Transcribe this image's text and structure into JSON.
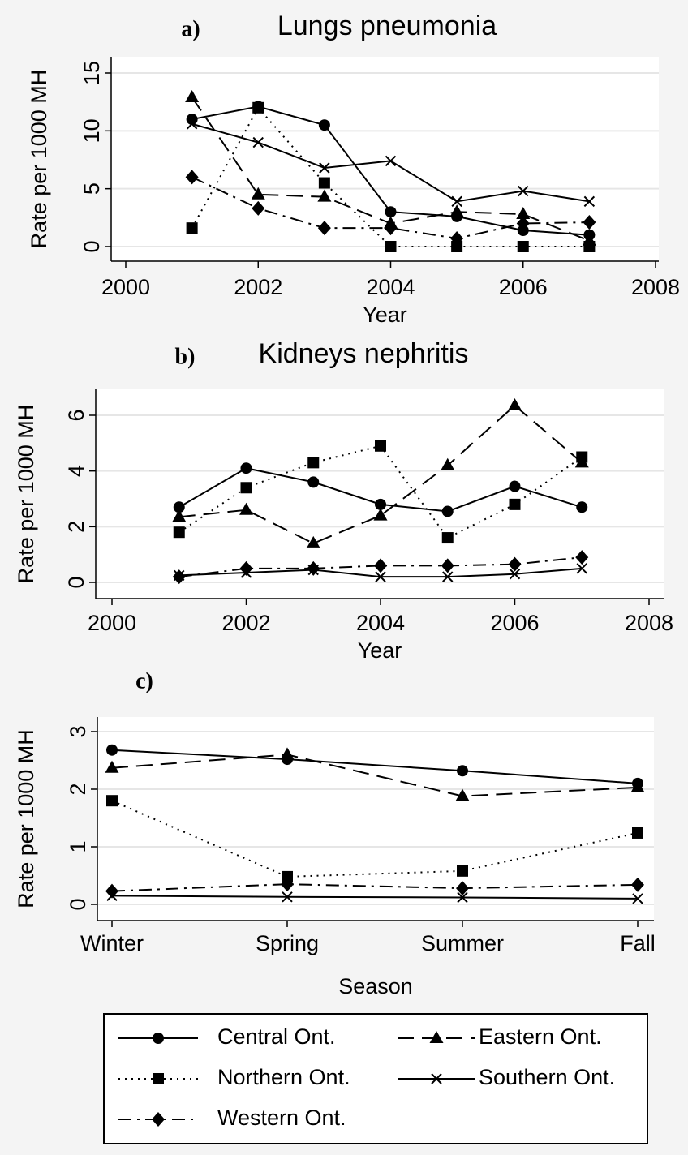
{
  "chart_data": [
    {
      "type": "line",
      "panel_label": "a)",
      "title": "Lungs pneumonia",
      "x_label": "Year",
      "y_label": "Rate per 1000 MH",
      "x": [
        2001,
        2002,
        2003,
        2004,
        2005,
        2006,
        2007
      ],
      "xlim": [
        2000,
        2008
      ],
      "xticks": [
        2000,
        2002,
        2004,
        2006,
        2008
      ],
      "ylim": [
        0,
        15
      ],
      "yticks": [
        0,
        5,
        10,
        15
      ],
      "grid": true,
      "series": [
        {
          "name": "Central Ont.",
          "color": "#000000",
          "marker": "circle",
          "dash": "solid",
          "values": [
            11,
            12.1,
            10.5,
            3.0,
            2.6,
            1.4,
            1.0
          ]
        },
        {
          "name": "Eastern Ont.",
          "color": "#000000",
          "marker": "triangle",
          "dash": "dash",
          "values": [
            12.9,
            4.5,
            4.3,
            2.0,
            3.0,
            2.8,
            0.5
          ]
        },
        {
          "name": "Northern Ont.",
          "color": "#000000",
          "marker": "square",
          "dash": "dot",
          "values": [
            1.6,
            12.0,
            5.5,
            0,
            0,
            0,
            0
          ]
        },
        {
          "name": "Southern Ont.",
          "color": "#000000",
          "marker": "x",
          "dash": "solid",
          "values": [
            10.6,
            9.0,
            6.8,
            7.4,
            3.9,
            4.8,
            3.9
          ]
        },
        {
          "name": "Western Ont.",
          "color": "#000000",
          "marker": "diamond",
          "dash": "dashdot",
          "values": [
            6.0,
            3.3,
            1.6,
            1.6,
            0.7,
            2.0,
            2.1
          ]
        }
      ]
    },
    {
      "type": "line",
      "panel_label": "b)",
      "title": "Kidneys nephritis",
      "x_label": "Year",
      "y_label": "Rate per 1000 MH",
      "x": [
        2001,
        2002,
        2003,
        2004,
        2005,
        2006,
        2007
      ],
      "xlim": [
        2000,
        2008
      ],
      "xticks": [
        2000,
        2002,
        2004,
        2006,
        2008
      ],
      "ylim": [
        0,
        6
      ],
      "yticks": [
        0,
        2,
        4,
        6
      ],
      "grid": true,
      "series": [
        {
          "color": "#000000",
          "marker": "circle",
          "dash": "solid",
          "values": [
            2.7,
            4.1,
            3.6,
            2.8,
            2.55,
            3.45,
            2.7
          ]
        },
        {
          "color": "#000000",
          "marker": "triangle",
          "dash": "dash",
          "values": [
            2.35,
            2.6,
            1.4,
            2.4,
            4.2,
            6.35,
            4.3
          ]
        },
        {
          "color": "#000000",
          "marker": "square",
          "dash": "dot",
          "values": [
            1.8,
            3.4,
            4.3,
            4.9,
            1.6,
            2.8,
            4.5
          ]
        },
        {
          "color": "#000000",
          "marker": "x",
          "dash": "solid",
          "values": [
            0.25,
            0.35,
            0.45,
            0.2,
            0.2,
            0.3,
            0.5
          ]
        },
        {
          "color": "#000000",
          "marker": "diamond",
          "dash": "dashdot",
          "values": [
            0.2,
            0.5,
            0.5,
            0.6,
            0.6,
            0.65,
            0.9
          ]
        }
      ]
    },
    {
      "type": "line",
      "panel_label": "c)",
      "x_label": "Season",
      "y_label": "Rate per 1000 MH",
      "categories": [
        "Winter",
        "Spring",
        "Summer",
        "Fall"
      ],
      "ylim": [
        0,
        3
      ],
      "yticks": [
        0,
        1,
        2,
        3
      ],
      "grid": true,
      "series": [
        {
          "color": "#000000",
          "marker": "circle",
          "dash": "solid",
          "values": [
            2.68,
            2.52,
            2.32,
            2.1
          ]
        },
        {
          "color": "#000000",
          "marker": "triangle",
          "dash": "dash",
          "values": [
            2.37,
            2.6,
            1.88,
            2.03
          ]
        },
        {
          "color": "#000000",
          "marker": "square",
          "dash": "dot",
          "values": [
            1.8,
            0.48,
            0.58,
            1.24
          ]
        },
        {
          "color": "#000000",
          "marker": "x",
          "dash": "solid",
          "values": [
            0.15,
            0.13,
            0.12,
            0.1
          ]
        },
        {
          "color": "#000000",
          "marker": "diamond",
          "dash": "dashdot",
          "values": [
            0.23,
            0.35,
            0.28,
            0.34
          ]
        }
      ]
    }
  ]
}
